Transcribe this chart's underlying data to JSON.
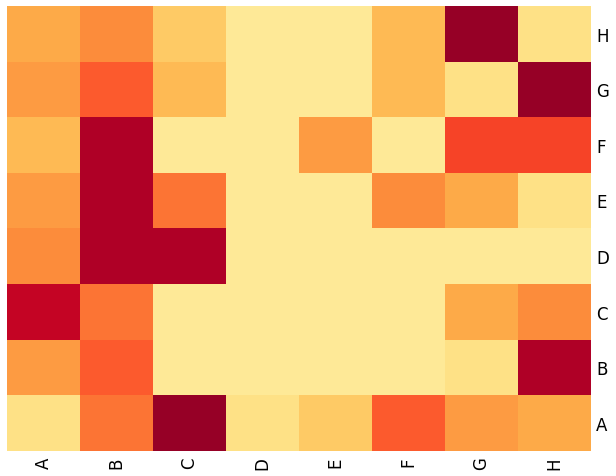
{
  "labels": [
    "A",
    "B",
    "C",
    "D",
    "E",
    "F",
    "G",
    "H"
  ],
  "matrix_rows_H_to_A": [
    [
      40,
      50,
      30,
      15,
      15,
      35,
      95,
      20
    ],
    [
      45,
      60,
      35,
      15,
      15,
      35,
      20,
      95
    ],
    [
      35,
      90,
      15,
      15,
      45,
      15,
      65,
      65
    ],
    [
      45,
      90,
      55,
      15,
      15,
      50,
      40,
      20
    ],
    [
      50,
      90,
      90,
      15,
      15,
      15,
      15,
      15
    ],
    [
      85,
      55,
      15,
      15,
      15,
      15,
      40,
      50
    ],
    [
      45,
      60,
      15,
      15,
      15,
      15,
      20,
      90
    ],
    [
      20,
      55,
      95,
      20,
      30,
      60,
      45,
      40
    ]
  ],
  "cmap": "YlOrRd",
  "vmin": 0,
  "vmax": 100,
  "xlabel_rotation": 90,
  "tick_fontsize": 12
}
